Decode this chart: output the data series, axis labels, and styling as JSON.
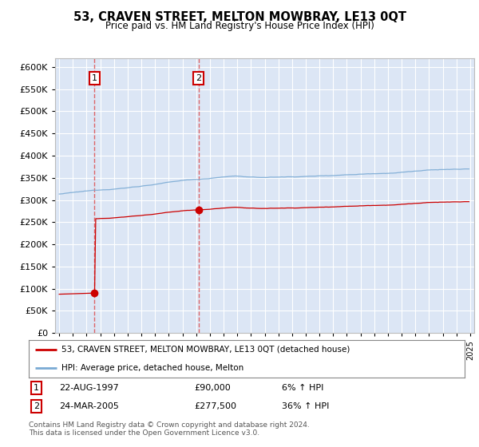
{
  "title": "53, CRAVEN STREET, MELTON MOWBRAY, LE13 0QT",
  "subtitle": "Price paid vs. HM Land Registry's House Price Index (HPI)",
  "background_color": "#ffffff",
  "plot_bg_color": "#dce6f5",
  "grid_color": "#ffffff",
  "hpi_line_color": "#7aaad4",
  "price_line_color": "#cc0000",
  "shade_color": "#dce6f5",
  "sale1_date": "22-AUG-1997",
  "sale1_price": 90000,
  "sale1_hpi": "6% ↑ HPI",
  "sale2_date": "24-MAR-2005",
  "sale2_price": 277500,
  "sale2_hpi": "36% ↑ HPI",
  "legend_label1": "53, CRAVEN STREET, MELTON MOWBRAY, LE13 0QT (detached house)",
  "legend_label2": "HPI: Average price, detached house, Melton",
  "footer": "Contains HM Land Registry data © Crown copyright and database right 2024.\nThis data is licensed under the Open Government Licence v3.0.",
  "ylim": [
    0,
    620000
  ],
  "yticks": [
    0,
    50000,
    100000,
    150000,
    200000,
    250000,
    300000,
    350000,
    400000,
    450000,
    500000,
    550000,
    600000
  ],
  "year_start": 1995,
  "year_end": 2025
}
